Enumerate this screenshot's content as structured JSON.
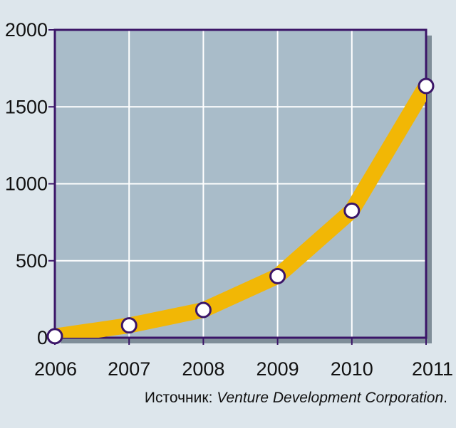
{
  "chart_data": {
    "type": "line",
    "title": "",
    "xlabel": "",
    "ylabel": "",
    "x": [
      "2006",
      "2007",
      "2008",
      "2009",
      "2010",
      "2011"
    ],
    "series": [
      {
        "values": [
          10,
          80,
          180,
          400,
          825,
          1635
        ]
      }
    ],
    "ylim": [
      0,
      2000
    ],
    "yticks": [
      "0",
      "500",
      "1000",
      "1500",
      "2000"
    ],
    "grid": true,
    "colors": {
      "page_background": "#dde6ec",
      "plot_background": "#a9bcc9",
      "frame": "#3b1568",
      "grid": "#ffffff",
      "line": "#f2b705",
      "marker_fill": "#ffffff",
      "marker_stroke": "#3b1568"
    }
  },
  "source": {
    "prefix": "Источник: ",
    "name": "Venture Development Corporation",
    "suffix": "."
  }
}
